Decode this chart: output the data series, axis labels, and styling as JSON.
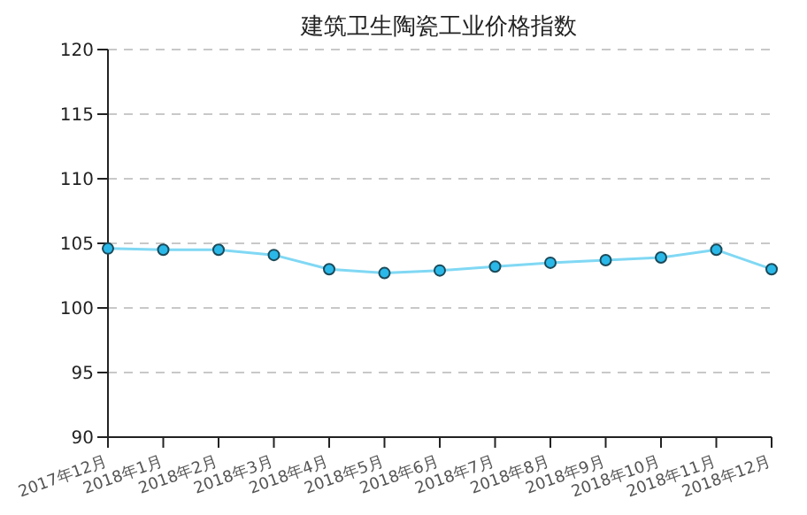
{
  "chart_data": {
    "type": "line",
    "title": "建筑卫生陶瓷工业价格指数",
    "categories": [
      "2017年12月",
      "2018年1月",
      "2018年2月",
      "2018年3月",
      "2018年4月",
      "2018年5月",
      "2018年6月",
      "2018年7月",
      "2018年8月",
      "2018年9月",
      "2018年10月",
      "2018年11月",
      "2018年12月"
    ],
    "series": [
      {
        "color": "#80d8f4",
        "values": [
          104.6,
          104.5,
          104.5,
          104.1,
          103.0,
          102.7,
          102.9,
          103.2,
          103.5,
          103.7,
          103.9,
          104.5,
          103.0
        ]
      }
    ],
    "ylim": [
      90,
      120
    ],
    "yticks": [
      90,
      95,
      100,
      105,
      110,
      115,
      120
    ],
    "grid": "y",
    "marker": "circle",
    "line_style": "solid"
  }
}
